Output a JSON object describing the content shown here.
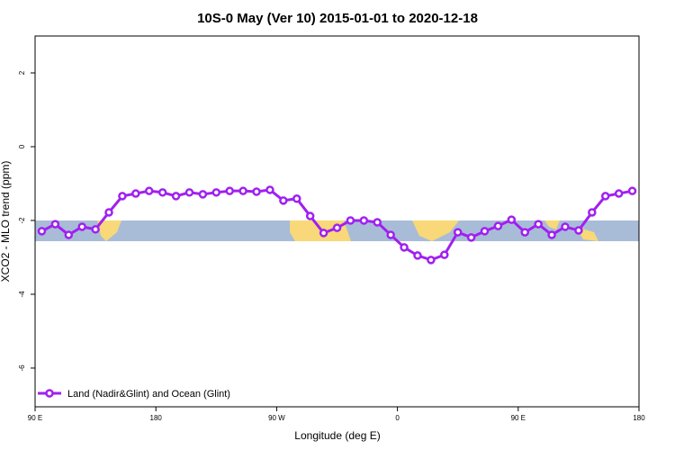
{
  "chart_data": {
    "type": "line",
    "title": "10S-0 May (Ver 10)   2015-01-01 to 2020-12-18",
    "xlabel": "Longitude (deg E)",
    "ylabel": "XCO2 - MLO trend (ppm)",
    "xlim": [
      90,
      540
    ],
    "ylim": [
      -7.05,
      3
    ],
    "xticks": [
      {
        "value": 90,
        "label": "90 E"
      },
      180,
      {
        "value": 270,
        "label": "90 W"
      },
      {
        "value": 360,
        "label": "0"
      },
      {
        "value": 450,
        "label": "90 E"
      },
      {
        "value": 540,
        "label": "180"
      }
    ],
    "yticks": [
      2,
      0,
      -2,
      -4,
      -6
    ],
    "legend": "bottom-left",
    "x": [
      95,
      105,
      115,
      125,
      135,
      145,
      155,
      165,
      175,
      185,
      195,
      205,
      215,
      225,
      235,
      245,
      255,
      265,
      275,
      285,
      295,
      305,
      315,
      325,
      335,
      345,
      355,
      365,
      375,
      385,
      395,
      405,
      415,
      425,
      435,
      445,
      455,
      465,
      475,
      485,
      495,
      505,
      515,
      525,
      535
    ],
    "series": [
      {
        "name": "Land (Nadir&Glint) and Ocean (Glint)",
        "color": "#a020f0",
        "values": [
          -2.29,
          -2.1,
          -2.39,
          -2.17,
          -2.24,
          -1.78,
          -1.34,
          -1.27,
          -1.2,
          -1.24,
          -1.34,
          -1.24,
          -1.29,
          -1.24,
          -1.2,
          -1.2,
          -1.22,
          -1.17,
          -1.46,
          -1.41,
          -1.88,
          -2.34,
          -2.2,
          -2.0,
          -2.0,
          -2.05,
          -2.39,
          -2.73,
          -2.95,
          -3.07,
          -2.93,
          -2.32,
          -2.46,
          -2.29,
          -2.15,
          -1.98,
          -2.32,
          -2.1,
          -2.39,
          -2.17,
          -2.27,
          -1.78,
          -1.34,
          -1.27,
          -1.2
        ]
      }
    ]
  }
}
